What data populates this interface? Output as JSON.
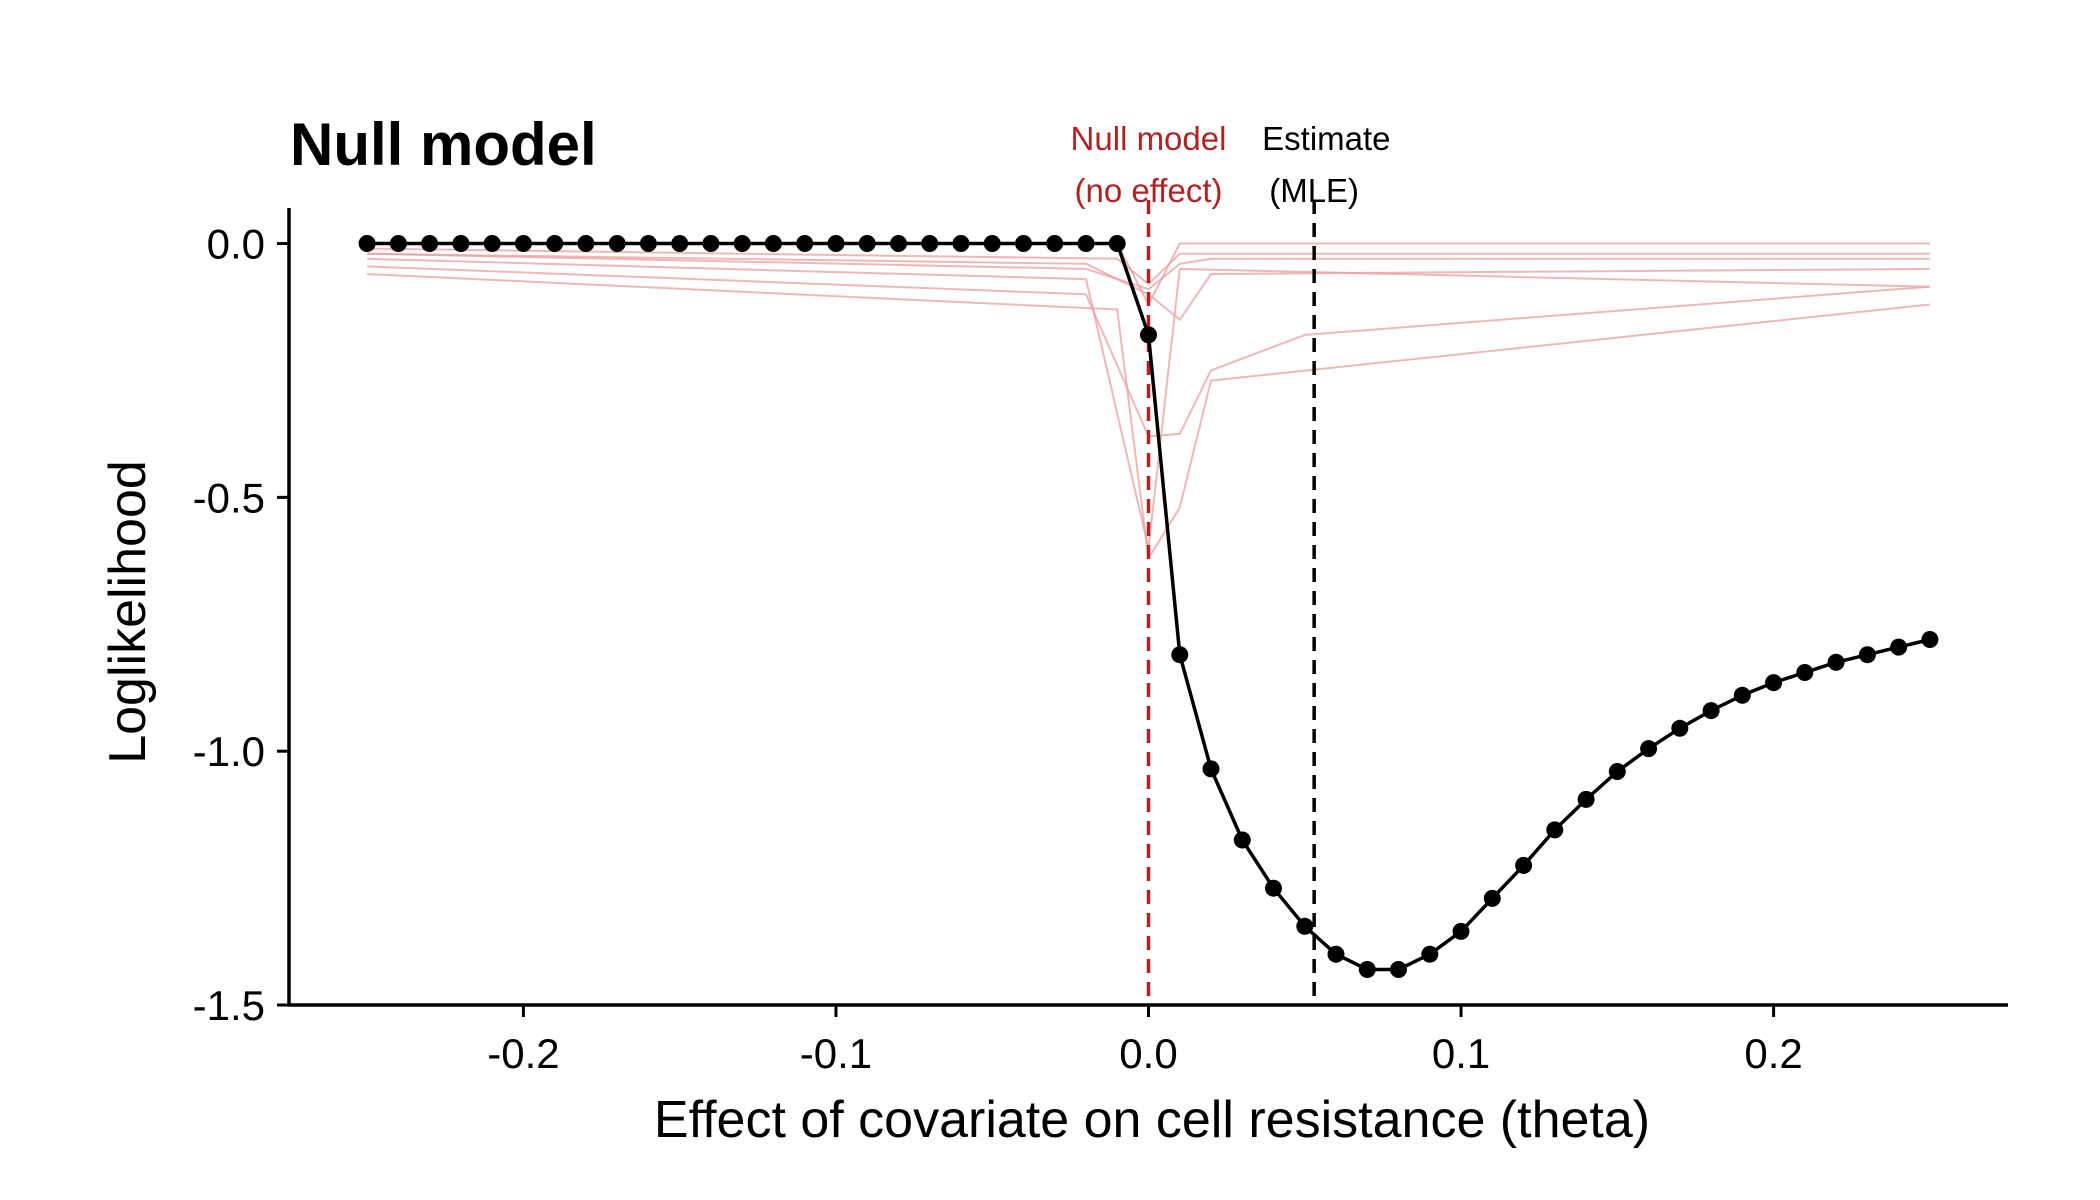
{
  "chart_data": {
    "type": "line",
    "title": "Null model",
    "xlabel": "Effect of covariate on cell resistance (theta)",
    "ylabel": "Loglikelihood",
    "xlim": [
      -0.275,
      0.275
    ],
    "ylim": [
      -1.5,
      0.07
    ],
    "x_ticks": [
      -0.2,
      -0.1,
      0.0,
      0.1,
      0.2
    ],
    "x_tick_labels": [
      "-0.2",
      "-0.1",
      "0.0",
      "0.1",
      "0.2"
    ],
    "y_ticks": [
      0.0,
      -0.5,
      -1.0,
      -1.5
    ],
    "y_tick_labels": [
      "0.0",
      "-0.5",
      "-1.0",
      "-1.5"
    ],
    "grid": false,
    "colors": {
      "main": "#000000",
      "null_line": "#b22222",
      "bootstrap": "#e8a0a0",
      "mle_line": "#000000"
    },
    "main_series": {
      "x": [
        -0.25,
        -0.24,
        -0.23,
        -0.22,
        -0.21,
        -0.2,
        -0.19,
        -0.18,
        -0.17,
        -0.16,
        -0.15,
        -0.14,
        -0.13,
        -0.12,
        -0.11,
        -0.1,
        -0.09,
        -0.08,
        -0.07,
        -0.06,
        -0.05,
        -0.04,
        -0.03,
        -0.02,
        -0.01,
        0.0,
        0.01,
        0.02,
        0.03,
        0.04,
        0.05,
        0.06,
        0.07,
        0.08,
        0.09,
        0.1,
        0.11,
        0.12,
        0.13,
        0.14,
        0.15,
        0.16,
        0.17,
        0.18,
        0.19,
        0.2,
        0.21,
        0.22,
        0.23,
        0.24,
        0.25
      ],
      "y": [
        0,
        0,
        0,
        0,
        0,
        0,
        0,
        0,
        0,
        0,
        0,
        0,
        0,
        0,
        0,
        0,
        0,
        0,
        0,
        0,
        0,
        0,
        0,
        0,
        0,
        -0.18,
        -0.81,
        -1.035,
        -1.175,
        -1.27,
        -1.345,
        -1.4,
        -1.43,
        -1.43,
        -1.4,
        -1.355,
        -1.29,
        -1.225,
        -1.155,
        -1.095,
        -1.04,
        -0.995,
        -0.955,
        -0.92,
        -0.89,
        -0.865,
        -0.845,
        -0.825,
        -0.81,
        -0.795,
        -0.78
      ]
    },
    "bootstrap_series": [
      {
        "x": [
          -0.25,
          -0.01,
          0.0,
          0.01,
          0.25
        ],
        "y": [
          0,
          0,
          -0.12,
          0,
          0
        ]
      },
      {
        "x": [
          -0.25,
          -0.01,
          0.0,
          0.01,
          0.25
        ],
        "y": [
          -0.01,
          -0.03,
          -0.08,
          -0.02,
          -0.02
        ]
      },
      {
        "x": [
          -0.25,
          -0.02,
          0.0,
          0.01,
          0.02,
          0.25
        ],
        "y": [
          -0.02,
          -0.04,
          -0.1,
          -0.15,
          -0.06,
          -0.05
        ]
      },
      {
        "x": [
          -0.25,
          -0.02,
          0.0,
          0.01,
          0.25
        ],
        "y": [
          -0.03,
          -0.07,
          -0.6,
          -0.05,
          -0.085
        ]
      },
      {
        "x": [
          -0.25,
          -0.02,
          0.0,
          0.01,
          0.02,
          0.05,
          0.25
        ],
        "y": [
          -0.045,
          -0.1,
          -0.38,
          -0.375,
          -0.25,
          -0.18,
          -0.085
        ]
      },
      {
        "x": [
          -0.25,
          -0.01,
          0.0,
          0.01,
          0.02,
          0.25
        ],
        "y": [
          -0.06,
          -0.13,
          -0.62,
          -0.52,
          -0.27,
          -0.12
        ]
      },
      {
        "x": [
          -0.25,
          -0.02,
          0.0,
          0.01,
          0.02,
          0.25
        ],
        "y": [
          -0.02,
          -0.05,
          -0.09,
          -0.04,
          -0.03,
          -0.03
        ]
      }
    ],
    "vlines": [
      {
        "x": 0.0,
        "color": "#b22222",
        "label_lines": [
          "Null model",
          "(no effect)"
        ]
      },
      {
        "x": 0.053,
        "color": "#000000",
        "label_lines": [
          "Estimate",
          "(MLE)"
        ]
      }
    ]
  }
}
